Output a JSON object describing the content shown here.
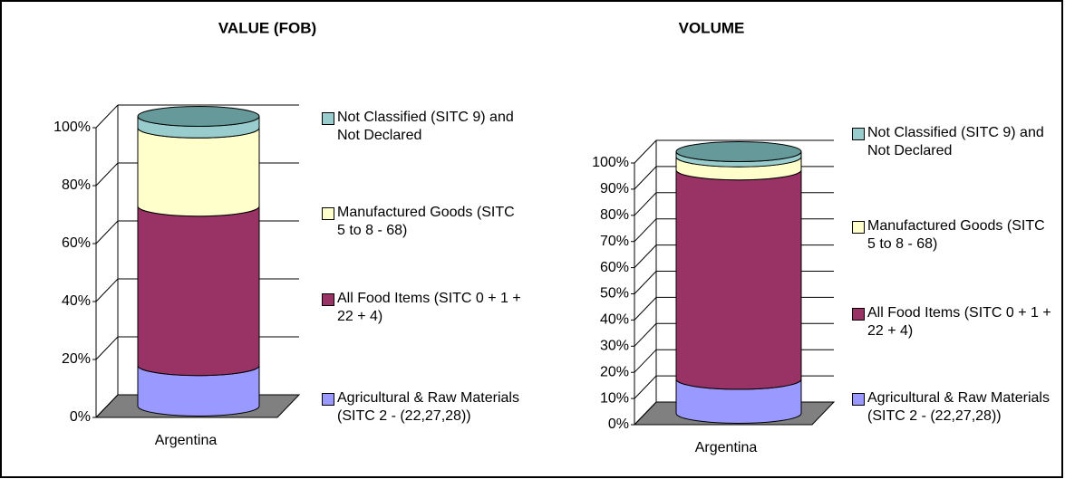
{
  "chart_data": [
    {
      "type": "bar",
      "title": "VALUE (FOB)",
      "categories": [
        "Argentina"
      ],
      "series": [
        {
          "name": "Agricultural & Raw Materials (SITC 2 - (22,27,28))",
          "color": "#9999ff",
          "values": [
            14
          ]
        },
        {
          "name": "All Food Items (SITC 0 + 1 + 22 + 4)",
          "color": "#993366",
          "values": [
            55
          ]
        },
        {
          "name": "Manufactured Goods (SITC 5 to 8 - 68)",
          "color": "#ffffcc",
          "values": [
            27
          ]
        },
        {
          "name": "Not Classified (SITC 9) and Not Declared",
          "color": "#99cccc",
          "values": [
            4
          ]
        }
      ],
      "ylim": [
        0,
        100
      ],
      "yticks": [
        {
          "value": 0,
          "label": "0%"
        },
        {
          "value": 20,
          "label": "20%"
        },
        {
          "value": 40,
          "label": "40%"
        },
        {
          "value": 60,
          "label": "60%"
        },
        {
          "value": 80,
          "label": "80%"
        },
        {
          "value": 100,
          "label": "100%"
        }
      ],
      "grid": true
    },
    {
      "type": "bar",
      "title": "VOLUME",
      "categories": [
        "Argentina"
      ],
      "series": [
        {
          "name": "Agricultural & Raw Materials (SITC 2 - (22,27,28))",
          "color": "#9999ff",
          "values": [
            13
          ]
        },
        {
          "name": "All Food Items (SITC 0 + 1 + 22 + 4)",
          "color": "#993366",
          "values": [
            80
          ]
        },
        {
          "name": "Manufactured Goods (SITC 5 to 8 - 68)",
          "color": "#ffffcc",
          "values": [
            5
          ]
        },
        {
          "name": "Not Classified (SITC 9) and Not Declared",
          "color": "#99cccc",
          "values": [
            2
          ]
        }
      ],
      "ylim": [
        0,
        100
      ],
      "yticks": [
        {
          "value": 0,
          "label": "0%"
        },
        {
          "value": 10,
          "label": "10%"
        },
        {
          "value": 20,
          "label": "20%"
        },
        {
          "value": 30,
          "label": "30%"
        },
        {
          "value": 40,
          "label": "40%"
        },
        {
          "value": 50,
          "label": "50%"
        },
        {
          "value": 60,
          "label": "60%"
        },
        {
          "value": 70,
          "label": "70%"
        },
        {
          "value": 80,
          "label": "80%"
        },
        {
          "value": 90,
          "label": "90%"
        },
        {
          "value": 100,
          "label": "100%"
        }
      ],
      "grid": true
    }
  ]
}
